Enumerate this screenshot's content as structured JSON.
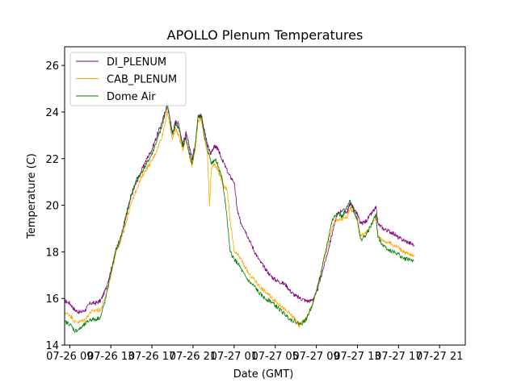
{
  "chart_data": {
    "type": "line",
    "title": "APOLLO Plenum Temperatures",
    "xlabel": "Date (GMT)",
    "ylabel": "Temperature (C)",
    "x_unit": "hours since 07-26 09:00",
    "xlim": [
      -0.5,
      38.5
    ],
    "ylim": [
      14,
      26.8
    ],
    "yticks": [
      14,
      16,
      18,
      20,
      22,
      24,
      26
    ],
    "xticks": [
      {
        "x": 0,
        "label": "07-26 09"
      },
      {
        "x": 4,
        "label": "07-26 13"
      },
      {
        "x": 8,
        "label": "07-26 17"
      },
      {
        "x": 12,
        "label": "07-26 21"
      },
      {
        "x": 16,
        "label": "07-27 01"
      },
      {
        "x": 20,
        "label": "07-27 05"
      },
      {
        "x": 24,
        "label": "07-27 09"
      },
      {
        "x": 28,
        "label": "07-27 13"
      },
      {
        "x": 32,
        "label": "07-27 17"
      },
      {
        "x": 36,
        "label": "07-27 21"
      }
    ],
    "legend_position": "top-left",
    "grid": false,
    "series": [
      {
        "name": "DI_PLENUM",
        "color": "#800080",
        "points": [
          [
            -0.5,
            15.9
          ],
          [
            0,
            15.8
          ],
          [
            0.5,
            15.5
          ],
          [
            1,
            15.4
          ],
          [
            1.5,
            15.5
          ],
          [
            2,
            15.8
          ],
          [
            2.5,
            15.8
          ],
          [
            3,
            15.9
          ],
          [
            3.5,
            16.4
          ],
          [
            4,
            17.2
          ],
          [
            4.5,
            18.0
          ],
          [
            5,
            18.6
          ],
          [
            5.5,
            19.5
          ],
          [
            6,
            20.4
          ],
          [
            6.5,
            21.0
          ],
          [
            7,
            21.5
          ],
          [
            7.5,
            22.0
          ],
          [
            8,
            22.4
          ],
          [
            8.5,
            23.0
          ],
          [
            9,
            23.6
          ],
          [
            9.5,
            24.3
          ],
          [
            9.8,
            23.6
          ],
          [
            10,
            23.1
          ],
          [
            10.3,
            23.6
          ],
          [
            10.6,
            23.5
          ],
          [
            11,
            22.6
          ],
          [
            11.3,
            23.1
          ],
          [
            11.6,
            22.6
          ],
          [
            11.9,
            22.0
          ],
          [
            12.2,
            22.6
          ],
          [
            12.5,
            23.8
          ],
          [
            12.8,
            23.9
          ],
          [
            13.1,
            23.2
          ],
          [
            13.4,
            22.6
          ],
          [
            13.7,
            22.2
          ],
          [
            14,
            22.5
          ],
          [
            14.3,
            22.5
          ],
          [
            14.6,
            22.2
          ],
          [
            15,
            21.8
          ],
          [
            15.5,
            21.3
          ],
          [
            16,
            21.0
          ],
          [
            16.3,
            19.8
          ],
          [
            16.6,
            19.3
          ],
          [
            17,
            19.0
          ],
          [
            17.5,
            18.5
          ],
          [
            18,
            18.0
          ],
          [
            18.5,
            17.6
          ],
          [
            19,
            17.3
          ],
          [
            19.5,
            17.0
          ],
          [
            20,
            16.8
          ],
          [
            20.5,
            16.7
          ],
          [
            21,
            16.6
          ],
          [
            21.5,
            16.3
          ],
          [
            22,
            16.1
          ],
          [
            22.5,
            16.0
          ],
          [
            23,
            15.9
          ],
          [
            23.5,
            15.9
          ],
          [
            24,
            16.2
          ],
          [
            24.5,
            17.0
          ],
          [
            25,
            17.8
          ],
          [
            25.5,
            18.7
          ],
          [
            26,
            19.6
          ],
          [
            26.5,
            19.8
          ],
          [
            27,
            19.7
          ],
          [
            27.3,
            20.1
          ],
          [
            27.6,
            19.9
          ],
          [
            28,
            19.6
          ],
          [
            28.3,
            19.2
          ],
          [
            28.8,
            19.3
          ],
          [
            29.3,
            19.6
          ],
          [
            29.8,
            19.9
          ],
          [
            30,
            19.2
          ],
          [
            30.5,
            19.0
          ],
          [
            31,
            18.9
          ],
          [
            31.5,
            18.8
          ],
          [
            32,
            18.6
          ],
          [
            32.5,
            18.5
          ],
          [
            33,
            18.4
          ],
          [
            33.5,
            18.3
          ]
        ]
      },
      {
        "name": "CAB_PLENUM",
        "color": "#ffa500",
        "points": [
          [
            -0.5,
            15.4
          ],
          [
            0,
            15.3
          ],
          [
            0.5,
            15.0
          ],
          [
            1,
            15.0
          ],
          [
            1.5,
            15.1
          ],
          [
            2,
            15.4
          ],
          [
            2.5,
            15.5
          ],
          [
            3,
            15.5
          ],
          [
            3.5,
            16.1
          ],
          [
            4,
            17.0
          ],
          [
            4.5,
            18.0
          ],
          [
            5,
            18.5
          ],
          [
            5.5,
            19.3
          ],
          [
            6,
            20.1
          ],
          [
            6.5,
            20.7
          ],
          [
            7,
            21.2
          ],
          [
            7.5,
            21.6
          ],
          [
            8,
            21.9
          ],
          [
            8.5,
            22.4
          ],
          [
            9,
            23.0
          ],
          [
            9.5,
            24.0
          ],
          [
            9.8,
            23.3
          ],
          [
            10,
            22.8
          ],
          [
            10.3,
            23.3
          ],
          [
            10.6,
            23.0
          ],
          [
            11,
            22.4
          ],
          [
            11.3,
            22.9
          ],
          [
            11.6,
            22.2
          ],
          [
            11.9,
            21.7
          ],
          [
            12.2,
            22.4
          ],
          [
            12.5,
            23.6
          ],
          [
            12.8,
            23.7
          ],
          [
            13.1,
            22.9
          ],
          [
            13.4,
            22.2
          ],
          [
            13.6,
            20.0
          ],
          [
            13.8,
            21.6
          ],
          [
            14.1,
            21.8
          ],
          [
            14.4,
            21.5
          ],
          [
            14.7,
            21.2
          ],
          [
            15,
            20.8
          ],
          [
            15.3,
            20.7
          ],
          [
            15.6,
            19.4
          ],
          [
            16,
            18.0
          ],
          [
            16.5,
            17.8
          ],
          [
            17,
            17.4
          ],
          [
            17.5,
            17.0
          ],
          [
            18,
            16.8
          ],
          [
            18.5,
            16.5
          ],
          [
            19,
            16.3
          ],
          [
            19.5,
            16.1
          ],
          [
            20,
            15.9
          ],
          [
            20.5,
            15.7
          ],
          [
            21,
            15.5
          ],
          [
            21.5,
            15.3
          ],
          [
            22,
            15.1
          ],
          [
            22.3,
            14.8
          ],
          [
            22.6,
            15.0
          ],
          [
            23,
            15.1
          ],
          [
            23.5,
            15.6
          ],
          [
            24,
            16.3
          ],
          [
            24.5,
            17.2
          ],
          [
            25,
            18.1
          ],
          [
            25.5,
            19.0
          ],
          [
            26,
            19.4
          ],
          [
            26.5,
            19.4
          ],
          [
            27,
            19.5
          ],
          [
            27.3,
            19.9
          ],
          [
            27.6,
            19.7
          ],
          [
            28,
            19.4
          ],
          [
            28.3,
            18.7
          ],
          [
            28.8,
            18.8
          ],
          [
            29.3,
            19.1
          ],
          [
            29.8,
            19.5
          ],
          [
            30,
            18.7
          ],
          [
            30.5,
            18.5
          ],
          [
            31,
            18.4
          ],
          [
            31.5,
            18.3
          ],
          [
            32,
            18.2
          ],
          [
            32.5,
            18.0
          ],
          [
            33,
            17.9
          ],
          [
            33.5,
            17.8
          ]
        ]
      },
      {
        "name": "Dome Air",
        "color": "#008000",
        "points": [
          [
            -0.5,
            15.0
          ],
          [
            0,
            14.9
          ],
          [
            0.5,
            14.6
          ],
          [
            1,
            14.7
          ],
          [
            1.5,
            14.9
          ],
          [
            2,
            15.1
          ],
          [
            2.5,
            15.1
          ],
          [
            3,
            15.2
          ],
          [
            3.5,
            16.0
          ],
          [
            4,
            17.1
          ],
          [
            4.5,
            18.1
          ],
          [
            5,
            18.7
          ],
          [
            5.5,
            19.6
          ],
          [
            6,
            20.5
          ],
          [
            6.5,
            21.1
          ],
          [
            7,
            21.4
          ],
          [
            7.5,
            21.8
          ],
          [
            8,
            22.2
          ],
          [
            8.5,
            22.8
          ],
          [
            9,
            23.4
          ],
          [
            9.5,
            24.4
          ],
          [
            9.8,
            23.5
          ],
          [
            10,
            23.0
          ],
          [
            10.3,
            23.5
          ],
          [
            10.6,
            23.3
          ],
          [
            11,
            22.5
          ],
          [
            11.3,
            22.9
          ],
          [
            11.6,
            22.3
          ],
          [
            11.9,
            21.8
          ],
          [
            12.2,
            22.5
          ],
          [
            12.5,
            23.8
          ],
          [
            12.8,
            23.8
          ],
          [
            13.1,
            23.0
          ],
          [
            13.4,
            22.4
          ],
          [
            13.8,
            21.8
          ],
          [
            14.2,
            22.0
          ],
          [
            14.5,
            21.6
          ],
          [
            14.8,
            21.2
          ],
          [
            15,
            20.6
          ],
          [
            15.3,
            19.5
          ],
          [
            15.6,
            18.0
          ],
          [
            16,
            17.7
          ],
          [
            16.5,
            17.4
          ],
          [
            17,
            17.0
          ],
          [
            17.5,
            16.7
          ],
          [
            18,
            16.5
          ],
          [
            18.5,
            16.2
          ],
          [
            19,
            16.0
          ],
          [
            19.5,
            15.9
          ],
          [
            20,
            15.7
          ],
          [
            20.5,
            15.5
          ],
          [
            21,
            15.3
          ],
          [
            21.5,
            15.1
          ],
          [
            22,
            15.0
          ],
          [
            22.5,
            14.9
          ],
          [
            23,
            15.1
          ],
          [
            23.5,
            15.6
          ],
          [
            24,
            16.3
          ],
          [
            24.5,
            17.2
          ],
          [
            25,
            18.2
          ],
          [
            25.5,
            19.3
          ],
          [
            26,
            19.7
          ],
          [
            26.5,
            19.5
          ],
          [
            27,
            19.9
          ],
          [
            27.3,
            20.2
          ],
          [
            27.6,
            19.8
          ],
          [
            28,
            19.4
          ],
          [
            28.3,
            18.5
          ],
          [
            28.8,
            18.7
          ],
          [
            29.3,
            19.1
          ],
          [
            29.8,
            19.6
          ],
          [
            30,
            18.6
          ],
          [
            30.5,
            18.3
          ],
          [
            31,
            18.1
          ],
          [
            31.5,
            18.0
          ],
          [
            32,
            17.9
          ],
          [
            32.5,
            17.7
          ],
          [
            33,
            17.7
          ],
          [
            33.5,
            17.6
          ]
        ]
      }
    ]
  }
}
